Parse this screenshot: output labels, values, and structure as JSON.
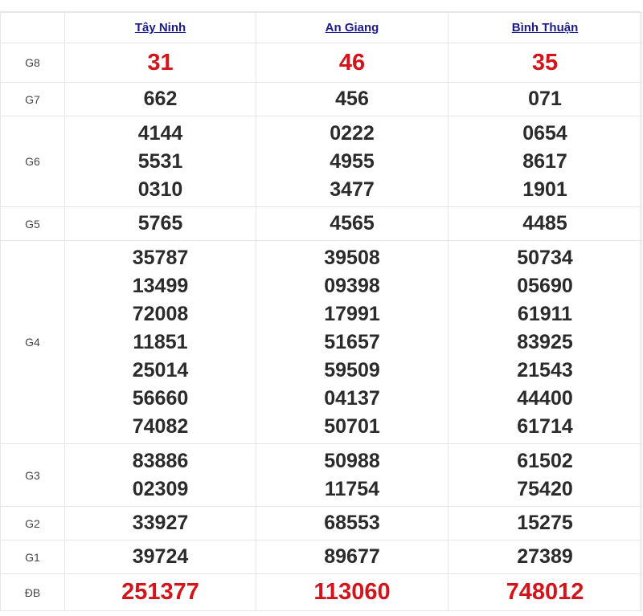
{
  "provinces": [
    "Tây Ninh",
    "An Giang",
    "Bình Thuận"
  ],
  "highlight_color": "#d4141a",
  "link_color": "#1a1a8c",
  "prizes": [
    {
      "label": "G8",
      "results": [
        [
          "31"
        ],
        [
          "46"
        ],
        [
          "35"
        ]
      ]
    },
    {
      "label": "G7",
      "results": [
        [
          "662"
        ],
        [
          "456"
        ],
        [
          "071"
        ]
      ]
    },
    {
      "label": "G6",
      "results": [
        [
          "4144",
          "5531",
          "0310"
        ],
        [
          "0222",
          "4955",
          "3477"
        ],
        [
          "0654",
          "8617",
          "1901"
        ]
      ]
    },
    {
      "label": "G5",
      "results": [
        [
          "5765"
        ],
        [
          "4565"
        ],
        [
          "4485"
        ]
      ]
    },
    {
      "label": "G4",
      "results": [
        [
          "35787",
          "13499",
          "72008",
          "11851",
          "25014",
          "56660",
          "74082"
        ],
        [
          "39508",
          "09398",
          "17991",
          "51657",
          "59509",
          "04137",
          "50701"
        ],
        [
          "50734",
          "05690",
          "61911",
          "83925",
          "21543",
          "44400",
          "61714"
        ]
      ]
    },
    {
      "label": "G3",
      "results": [
        [
          "83886",
          "02309"
        ],
        [
          "50988",
          "11754"
        ],
        [
          "61502",
          "75420"
        ]
      ]
    },
    {
      "label": "G2",
      "results": [
        [
          "33927"
        ],
        [
          "68553"
        ],
        [
          "15275"
        ]
      ]
    },
    {
      "label": "G1",
      "results": [
        [
          "39724"
        ],
        [
          "89677"
        ],
        [
          "27389"
        ]
      ]
    },
    {
      "label": "ĐB",
      "results": [
        [
          "251377"
        ],
        [
          "113060"
        ],
        [
          "748012"
        ]
      ]
    }
  ]
}
